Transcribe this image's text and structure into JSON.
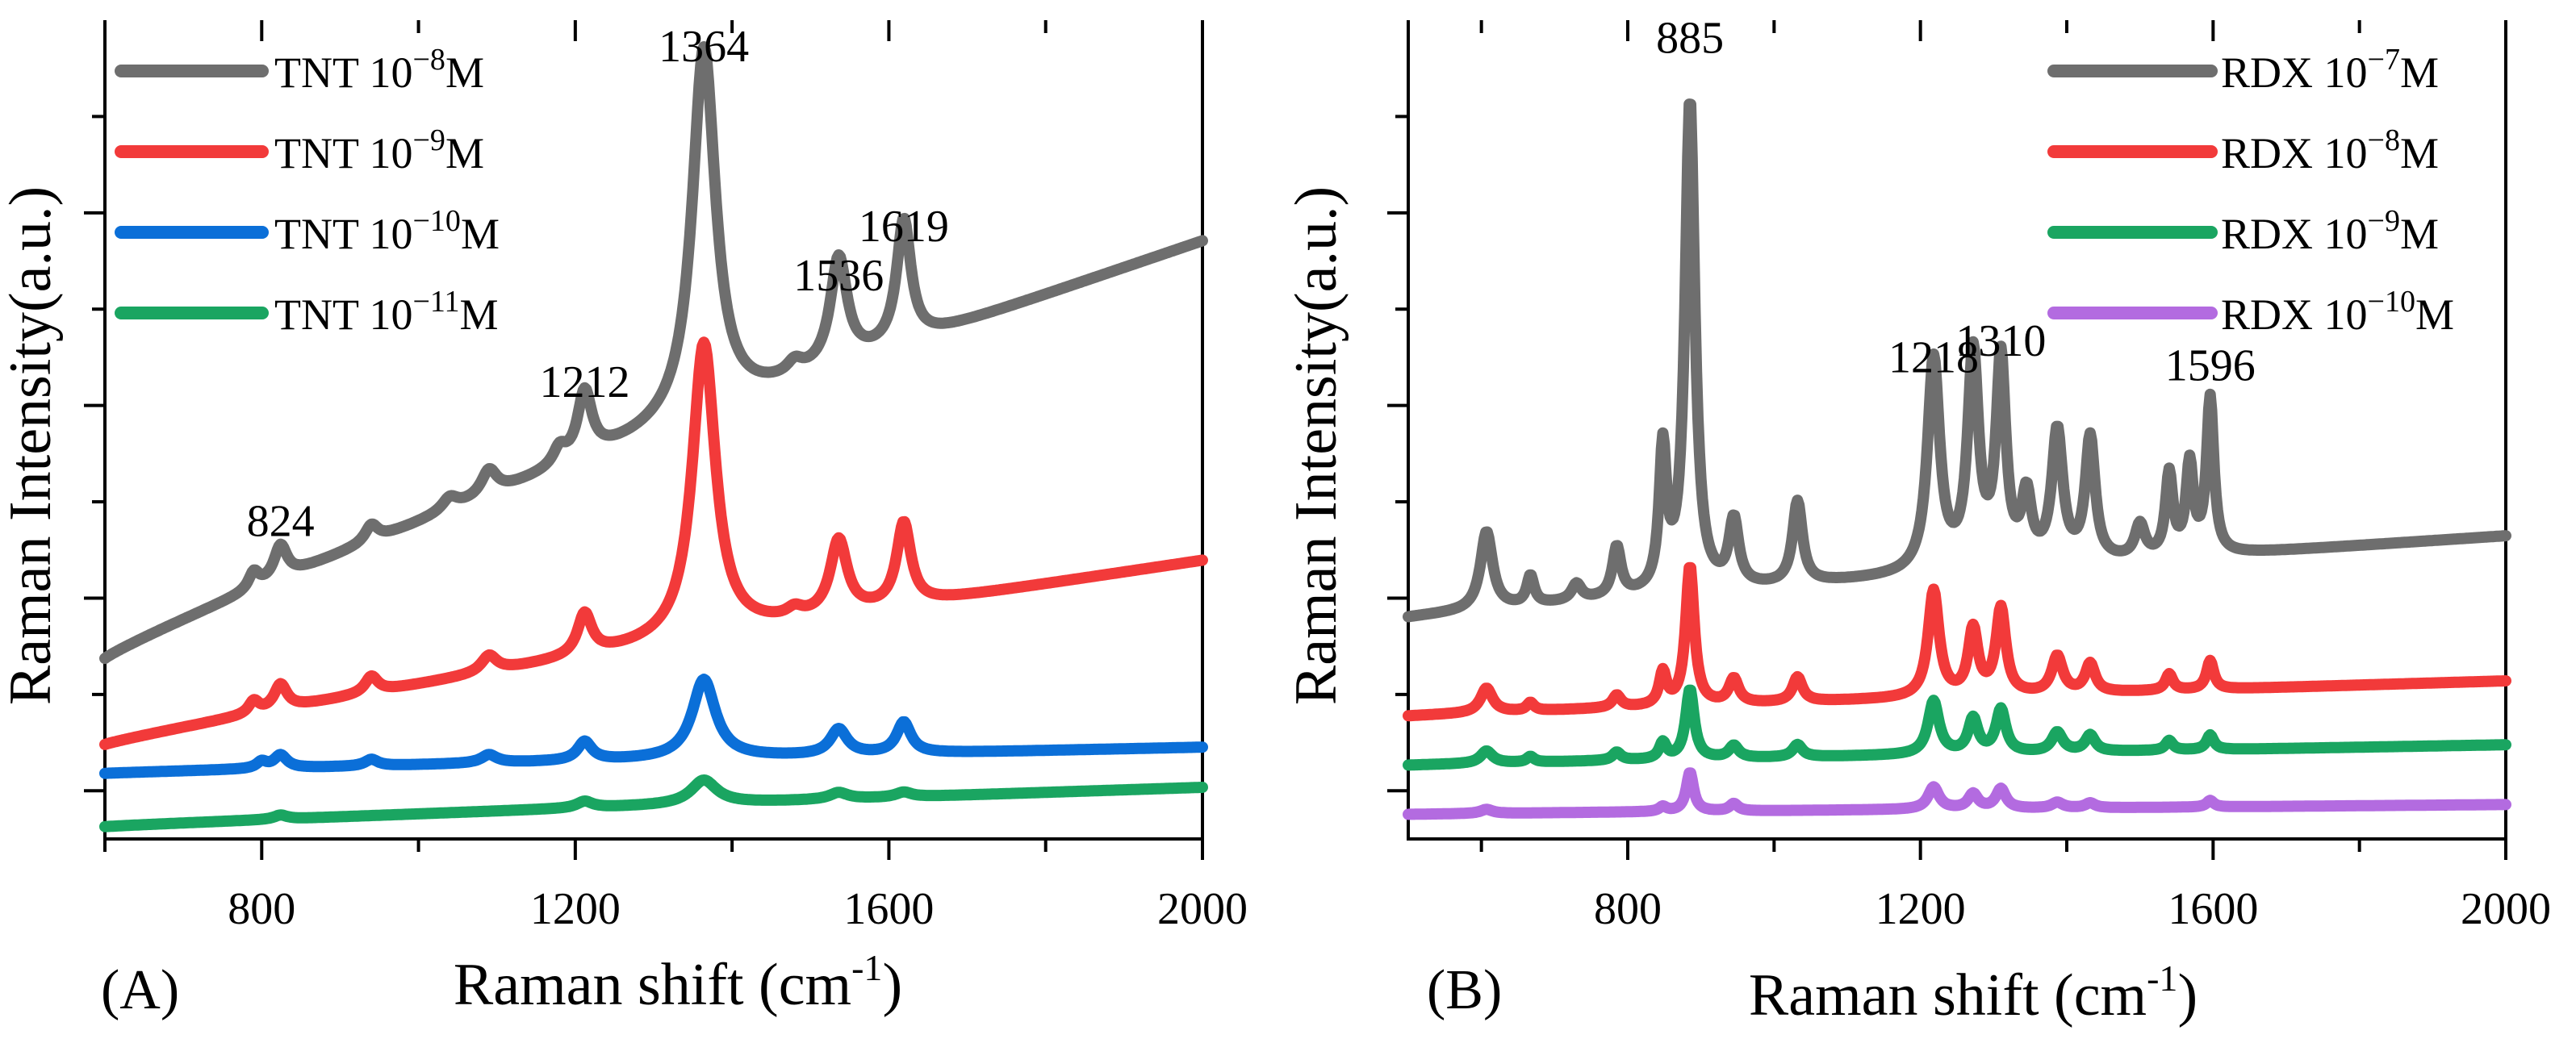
{
  "chart_data": [
    {
      "type": "line",
      "panel": "(A)",
      "xlabel": "Raman shift (cm",
      "xlabel_exp": "-1",
      "xlabel_end": ")",
      "ylabel": "Raman Intensity(a.u.)",
      "xlim": [
        600,
        2000
      ],
      "ylim": [
        0,
        100
      ],
      "xticks": [
        800,
        1200,
        1600,
        2000
      ],
      "legend_position": "top-left",
      "peak_labels": [
        {
          "x": 824,
          "label": "824",
          "y": 37
        },
        {
          "x": 1212,
          "label": "1212",
          "y": 54
        },
        {
          "x": 1364,
          "label": "1364",
          "y": 95
        },
        {
          "x": 1536,
          "label": "1536",
          "y": 67
        },
        {
          "x": 1619,
          "label": "1619",
          "y": 73
        }
      ],
      "series": [
        {
          "name": "TNT 10",
          "exp": "−8",
          "unit": "M",
          "color": "#6e6e6e",
          "baseline": [
            22,
            73
          ],
          "peaks": [
            [
              790,
              2,
              8
            ],
            [
              824,
              4,
              10
            ],
            [
              940,
              2,
              10
            ],
            [
              1040,
              1.5,
              12
            ],
            [
              1090,
              3,
              12
            ],
            [
              1180,
              2,
              10
            ],
            [
              1212,
              8,
              11
            ],
            [
              1364,
              45,
              18
            ],
            [
              1480,
              1.5,
              12
            ],
            [
              1536,
              13,
              13
            ],
            [
              1619,
              15,
              11
            ]
          ]
        },
        {
          "name": "TNT 10",
          "exp": "−9",
          "unit": "M",
          "color": "#f23a3a",
          "baseline": [
            11.5,
            34
          ],
          "peaks": [
            [
              790,
              1.5,
              8
            ],
            [
              824,
              3,
              10
            ],
            [
              940,
              2,
              10
            ],
            [
              1090,
              2,
              12
            ],
            [
              1212,
              5,
              11
            ],
            [
              1364,
              36,
              18
            ],
            [
              1480,
              1,
              12
            ],
            [
              1536,
              9,
              13
            ],
            [
              1619,
              10,
              11
            ]
          ]
        },
        {
          "name": "TNT 10",
          "exp": "−10",
          "unit": "M",
          "color": "#0b6fd8",
          "baseline": [
            8,
            11.2
          ],
          "peaks": [
            [
              800,
              0.8,
              8
            ],
            [
              824,
              1.6,
              10
            ],
            [
              940,
              0.8,
              10
            ],
            [
              1090,
              1,
              12
            ],
            [
              1212,
              2.3,
              11
            ],
            [
              1364,
              9.6,
              18
            ],
            [
              1536,
              3.1,
              13
            ],
            [
              1619,
              3.8,
              11
            ]
          ]
        },
        {
          "name": "TNT 10",
          "exp": "−11",
          "unit": "M",
          "color": "#1aa561",
          "baseline": [
            1.5,
            6.3
          ],
          "peaks": [
            [
              824,
              0.5,
              10
            ],
            [
              1212,
              0.8,
              12
            ],
            [
              1364,
              2.9,
              20
            ],
            [
              1536,
              0.8,
              14
            ],
            [
              1619,
              0.6,
              12
            ]
          ]
        }
      ]
    },
    {
      "type": "line",
      "panel": "(B)",
      "xlabel": "Raman shift (cm",
      "xlabel_exp": "-1",
      "xlabel_end": ")",
      "ylabel": "Raman Intensity(a.u.)",
      "xlim": [
        500,
        2000
      ],
      "ylim": [
        0,
        100
      ],
      "xticks": [
        800,
        1200,
        1600,
        2000
      ],
      "legend_position": "top-right",
      "peak_labels": [
        {
          "x": 885,
          "label": "885",
          "y": 96
        },
        {
          "x": 1218,
          "label": "1218",
          "y": 57
        },
        {
          "x": 1310,
          "label": "1310",
          "y": 59
        },
        {
          "x": 1596,
          "label": "1596",
          "y": 56
        }
      ],
      "series": [
        {
          "name": "RDX 10",
          "exp": "−7",
          "unit": "M",
          "color": "#6e6e6e",
          "baseline": [
            27,
            37
          ],
          "peaks": [
            [
              607,
              9.5,
              10
            ],
            [
              667,
              3.5,
              6
            ],
            [
              730,
              2,
              8
            ],
            [
              785,
              6,
              7
            ],
            [
              848,
              17,
              6
            ],
            [
              885,
              60,
              8
            ],
            [
              945,
              8,
              8
            ],
            [
              1032,
              10,
              8
            ],
            [
              1218,
              26,
              10
            ],
            [
              1272,
              26,
              9
            ],
            [
              1310,
              25,
              8
            ],
            [
              1345,
              8,
              8
            ],
            [
              1387,
              16,
              9
            ],
            [
              1432,
              15,
              8
            ],
            [
              1500,
              4,
              8
            ],
            [
              1540,
              10,
              6
            ],
            [
              1568,
              11,
              6
            ],
            [
              1596,
              19,
              6
            ]
          ]
        },
        {
          "name": "RDX 10",
          "exp": "−8",
          "unit": "M",
          "color": "#f23a3a",
          "baseline": [
            15,
            19.3
          ],
          "peaks": [
            [
              607,
              3,
              10
            ],
            [
              667,
              1,
              6
            ],
            [
              785,
              1.5,
              7
            ],
            [
              848,
              4,
              6
            ],
            [
              885,
              17,
              7
            ],
            [
              945,
              3,
              8
            ],
            [
              1032,
              3,
              8
            ],
            [
              1218,
              13,
              9
            ],
            [
              1272,
              8,
              8
            ],
            [
              1310,
              10.5,
              8
            ],
            [
              1387,
              4.5,
              9
            ],
            [
              1432,
              3.5,
              8
            ],
            [
              1540,
              2,
              6
            ],
            [
              1596,
              3.5,
              6
            ]
          ]
        },
        {
          "name": "RDX 10",
          "exp": "−9",
          "unit": "M",
          "color": "#1aa561",
          "baseline": [
            9,
            11.5
          ],
          "peaks": [
            [
              607,
              1.5,
              10
            ],
            [
              667,
              0.7,
              6
            ],
            [
              785,
              1,
              7
            ],
            [
              848,
              2,
              6
            ],
            [
              885,
              8.5,
              7
            ],
            [
              945,
              1.5,
              8
            ],
            [
              1032,
              1.5,
              8
            ],
            [
              1218,
              6.5,
              9
            ],
            [
              1272,
              4.2,
              8
            ],
            [
              1310,
              5.3,
              8
            ],
            [
              1387,
              2.4,
              9
            ],
            [
              1432,
              2,
              8
            ],
            [
              1540,
              1.2,
              6
            ],
            [
              1596,
              1.8,
              6
            ]
          ]
        },
        {
          "name": "RDX 10",
          "exp": "−10",
          "unit": "M",
          "color": "#b36be0",
          "baseline": [
            3,
            4.2
          ],
          "peaks": [
            [
              607,
              0.5,
              10
            ],
            [
              848,
              0.6,
              6
            ],
            [
              885,
              4.8,
              6
            ],
            [
              945,
              0.9,
              7
            ],
            [
              1218,
              2.7,
              9
            ],
            [
              1272,
              1.8,
              8
            ],
            [
              1310,
              2.4,
              8
            ],
            [
              1387,
              0.7,
              9
            ],
            [
              1432,
              0.6,
              8
            ],
            [
              1596,
              0.8,
              6
            ]
          ]
        }
      ]
    }
  ]
}
